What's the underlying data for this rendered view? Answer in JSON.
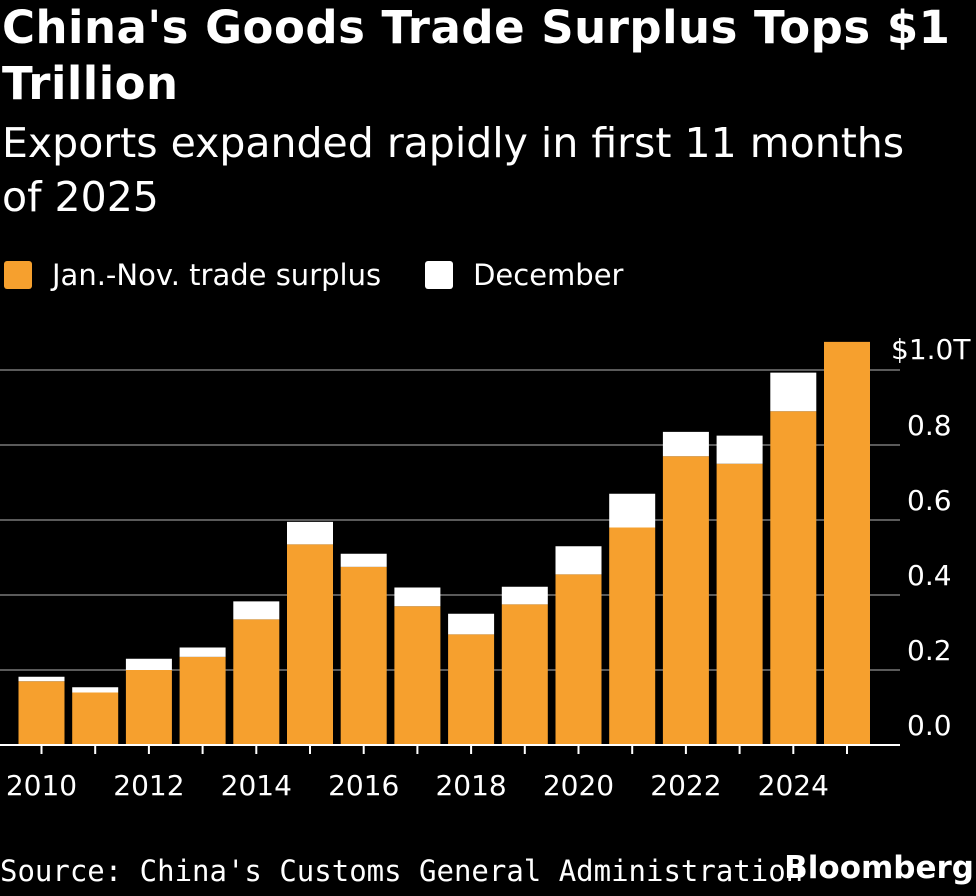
{
  "header": {
    "title": "China's Goods Trade Surplus Tops $1 Trillion",
    "subtitle": "Exports expanded rapidly in first 11 months of 2025"
  },
  "legend": {
    "items": [
      {
        "label": "Jan.-Nov. trade surplus",
        "color": "#F6A02E"
      },
      {
        "label": "December",
        "color": "#FFFFFF"
      }
    ]
  },
  "chart_data": {
    "type": "bar",
    "stacked": true,
    "title": "China's Goods Trade Surplus Tops $1 Trillion",
    "subtitle": "Exports expanded rapidly in first 11 months of 2025",
    "categories": [
      2010,
      2011,
      2012,
      2013,
      2014,
      2015,
      2016,
      2017,
      2018,
      2019,
      2020,
      2021,
      2022,
      2023,
      2024,
      2025
    ],
    "x_tick_labels": [
      "2010",
      "2012",
      "2014",
      "2016",
      "2018",
      "2020",
      "2022",
      "2024"
    ],
    "series": [
      {
        "name": "Jan.-Nov. trade surplus",
        "color": "#F6A02E",
        "values": [
          0.17,
          0.14,
          0.2,
          0.235,
          0.335,
          0.535,
          0.475,
          0.37,
          0.295,
          0.375,
          0.455,
          0.58,
          0.77,
          0.75,
          0.89,
          1.075
        ]
      },
      {
        "name": "December",
        "color": "#FFFFFF",
        "values": [
          0.012,
          0.014,
          0.03,
          0.025,
          0.048,
          0.06,
          0.035,
          0.05,
          0.055,
          0.047,
          0.075,
          0.09,
          0.065,
          0.075,
          0.103,
          0
        ]
      }
    ],
    "y_ticks": [
      0.0,
      0.2,
      0.4,
      0.6,
      0.8,
      1.0
    ],
    "y_tick_labels": [
      "0.0",
      "0.2",
      "0.4",
      "0.6",
      "0.8",
      "$1.0T"
    ],
    "ylim": [
      0,
      1.0
    ],
    "xlabel": "",
    "ylabel": "",
    "grid": true,
    "legend_position": "top-left"
  },
  "footer": {
    "source": "Source: China's Customs General Administration",
    "brand": "Bloomberg"
  }
}
